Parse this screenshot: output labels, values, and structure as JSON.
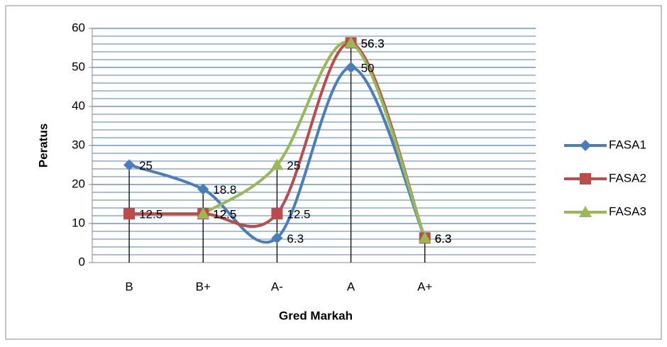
{
  "chart_data": {
    "type": "line",
    "x_label": "Gred Markah",
    "y_label": "Peratus",
    "categories": [
      "B",
      "B+",
      "A-",
      "A",
      "A+",
      null
    ],
    "series": [
      {
        "name": "FASA1",
        "color": "#4a7ebb",
        "marker": "diamond",
        "values": [
          25,
          18.8,
          6.3,
          50,
          6.3,
          null
        ]
      },
      {
        "name": "FASA2",
        "color": "#be4b48",
        "marker": "square",
        "values": [
          12.5,
          12.5,
          12.5,
          56.3,
          6.3,
          null
        ]
      },
      {
        "name": "FASA3",
        "color": "#98b954",
        "marker": "triangle",
        "values": [
          null,
          12.5,
          25,
          56.3,
          6.3,
          null
        ]
      }
    ],
    "ylim": [
      0,
      60
    ],
    "yticks": [
      0,
      10,
      20,
      30,
      40,
      50,
      60
    ],
    "grid": true,
    "minor_grid": true,
    "drop_lines": true,
    "smooth": true,
    "data_labels": true,
    "legend": "right"
  }
}
